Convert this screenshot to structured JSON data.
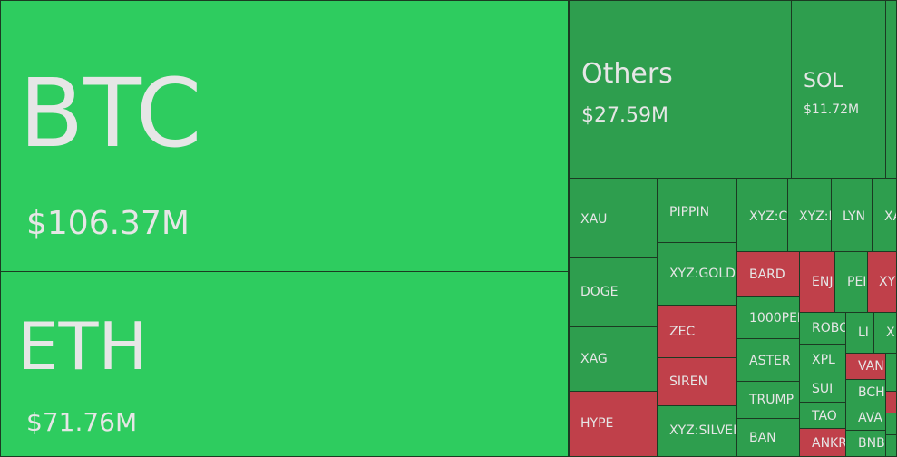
{
  "tiles": [
    {
      "label": "BTC",
      "value_label": "$106.37M",
      "color": "#2ecc5f"
    },
    {
      "label": "ETH",
      "value_label": "$71.76M",
      "color": "#2ecc5f"
    },
    {
      "label": "Others",
      "value_label": "$27.59M",
      "color": "#2e9e4e"
    },
    {
      "label": "SOL",
      "value_label": "$11.72M",
      "color": "#2e9e4e"
    },
    {
      "label": "XAU",
      "color": "#2e9e4e"
    },
    {
      "label": "DOGE",
      "color": "#2e9e4e"
    },
    {
      "label": "XAG",
      "color": "#2e9e4e"
    },
    {
      "label": "HYPE",
      "color": "#c0404a"
    },
    {
      "label": "PIPPIN",
      "color": "#2e9e4e"
    },
    {
      "label": "XYZ:GOLD",
      "color": "#2e9e4e"
    },
    {
      "label": "ZEC",
      "color": "#c0404a"
    },
    {
      "label": "SIREN",
      "color": "#c0404a"
    },
    {
      "label": "XYZ:SILVEI",
      "color": "#2e9e4e"
    },
    {
      "label": "XYZ:C",
      "color": "#2e9e4e"
    },
    {
      "label": "XYZ:I",
      "color": "#2e9e4e"
    },
    {
      "label": "LYN",
      "color": "#2e9e4e"
    },
    {
      "label": "XA",
      "color": "#2e9e4e"
    },
    {
      "label": "BARD",
      "color": "#c0404a"
    },
    {
      "label": "ENJ",
      "color": "#c0404a"
    },
    {
      "label": "PEI",
      "color": "#2e9e4e"
    },
    {
      "label": "XY",
      "color": "#c0404a"
    },
    {
      "label": "1000PEF",
      "color": "#2e9e4e"
    },
    {
      "label": "ASTER",
      "color": "#2e9e4e"
    },
    {
      "label": "TRUMP",
      "color": "#2e9e4e"
    },
    {
      "label": "BAN",
      "color": "#2e9e4e"
    },
    {
      "label": "ROBO",
      "color": "#2e9e4e"
    },
    {
      "label": "LI",
      "color": "#2e9e4e"
    },
    {
      "label": "X",
      "color": "#2e9e4e"
    },
    {
      "label": "XPL",
      "color": "#2e9e4e"
    },
    {
      "label": "SUI",
      "color": "#2e9e4e"
    },
    {
      "label": "TAO",
      "color": "#2e9e4e"
    },
    {
      "label": "ANKR",
      "color": "#c0404a"
    },
    {
      "label": "VAN",
      "color": "#c0404a"
    },
    {
      "label": "BCH",
      "color": "#2e9e4e"
    },
    {
      "label": "AVA",
      "color": "#2e9e4e"
    },
    {
      "label": "BNB",
      "color": "#2e9e4e"
    }
  ]
}
